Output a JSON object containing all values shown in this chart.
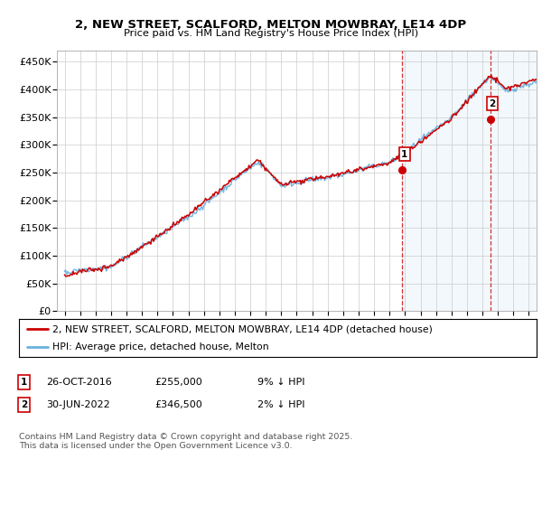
{
  "title": "2, NEW STREET, SCALFORD, MELTON MOWBRAY, LE14 4DP",
  "subtitle": "Price paid vs. HM Land Registry's House Price Index (HPI)",
  "ylabel_ticks": [
    "£0",
    "£50K",
    "£100K",
    "£150K",
    "£200K",
    "£250K",
    "£300K",
    "£350K",
    "£400K",
    "£450K"
  ],
  "ylim": [
    0,
    470000
  ],
  "hpi_color": "#6ab0de",
  "price_color": "#cc0000",
  "marker_color": "#cc0000",
  "vline_color": "#cc0000",
  "background_color": "#ffffff",
  "grid_color": "#cccccc",
  "legend_label_property": "2, NEW STREET, SCALFORD, MELTON MOWBRAY, LE14 4DP (detached house)",
  "legend_label_hpi": "HPI: Average price, detached house, Melton",
  "sale1_date": "26-OCT-2016",
  "sale1_price": "£255,000",
  "sale1_pct": "9% ↓ HPI",
  "sale2_date": "30-JUN-2022",
  "sale2_price": "£346,500",
  "sale2_pct": "2% ↓ HPI",
  "footnote": "Contains HM Land Registry data © Crown copyright and database right 2025.\nThis data is licensed under the Open Government Licence v3.0.",
  "sale1_x": 2016.82,
  "sale2_x": 2022.5,
  "sale1_y": 255000,
  "sale2_y": 346500,
  "xmin": 1994.5,
  "xmax": 2025.5
}
